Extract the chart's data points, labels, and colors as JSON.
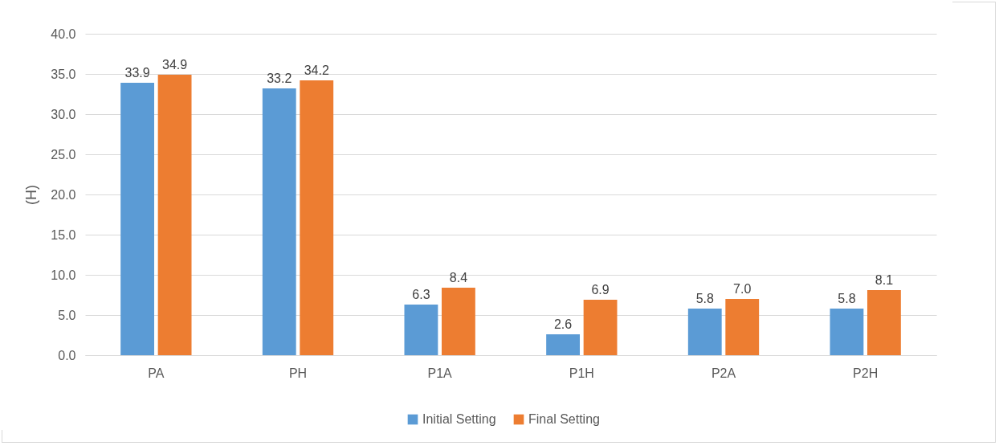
{
  "chart_data": {
    "type": "bar",
    "ylabel": "(H)",
    "categories": [
      "PA",
      "PH",
      "P1A",
      "P1H",
      "P2A",
      "P2H"
    ],
    "series": [
      {
        "name": "Initial Setting",
        "color": "#5b9bd5",
        "values": [
          33.9,
          33.2,
          6.3,
          2.6,
          5.8,
          5.8
        ],
        "value_labels": [
          "33.9",
          "33.2",
          "6.3",
          "2.6",
          "5.8",
          "5.8"
        ]
      },
      {
        "name": "Final Setting",
        "color": "#ed7d31",
        "values": [
          34.9,
          34.2,
          8.4,
          6.9,
          7.0,
          8.1
        ],
        "value_labels": [
          "34.9",
          "34.2",
          "8.4",
          "6.9",
          "7.0",
          "8.1"
        ]
      }
    ],
    "ylim": [
      0,
      40
    ],
    "yticks": [
      {
        "value": 0,
        "label": "0.0"
      },
      {
        "value": 5,
        "label": "5.0"
      },
      {
        "value": 10,
        "label": "10.0"
      },
      {
        "value": 15,
        "label": "15.0"
      },
      {
        "value": 20,
        "label": "20.0"
      },
      {
        "value": 25,
        "label": "25.0"
      },
      {
        "value": 30,
        "label": "30.0"
      },
      {
        "value": 35,
        "label": "35.0"
      },
      {
        "value": 40,
        "label": "40.0"
      }
    ],
    "grid": "y",
    "legend": "bottom"
  }
}
